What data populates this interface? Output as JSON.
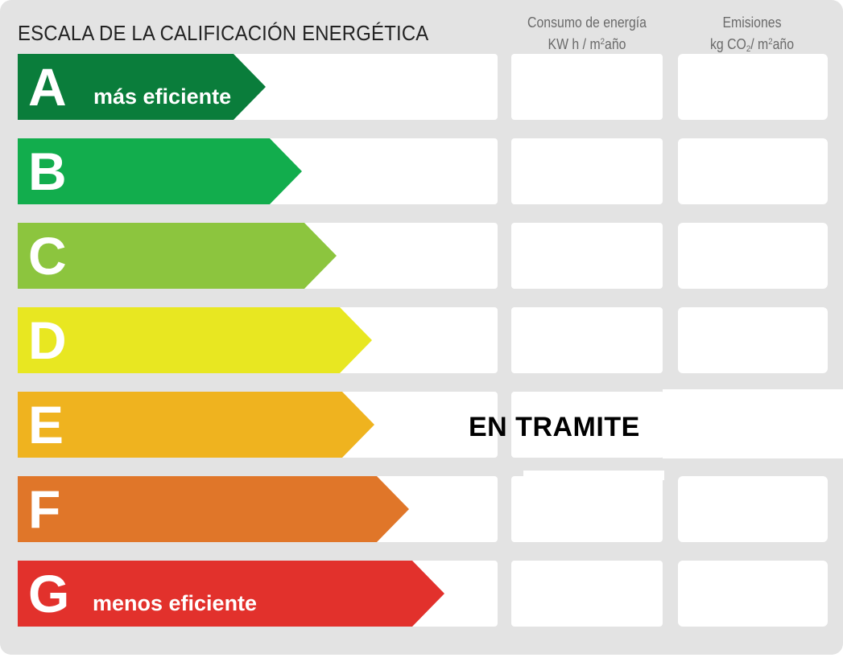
{
  "title": "ESCALA DE LA CALIFICACIÓN ENERGÉTICA",
  "columns": {
    "energy": {
      "line1": "Consumo de energía",
      "line2_pre": "KW h / m",
      "line2_sup": "2",
      "line2_post": "año"
    },
    "emissions": {
      "line1": "Emisiones",
      "line2_pre": "kg CO",
      "line2_sub": "2",
      "line2_mid": "/ m",
      "line2_sup": "2",
      "line2_post": "año"
    }
  },
  "ratings": [
    {
      "letter": "A",
      "label": "más eficiente",
      "color": "#0a7d3b"
    },
    {
      "letter": "B",
      "label": "",
      "color": "#12ad4d"
    },
    {
      "letter": "C",
      "label": "",
      "color": "#8cc53e"
    },
    {
      "letter": "D",
      "label": "",
      "color": "#e8e721"
    },
    {
      "letter": "E",
      "label": "",
      "color": "#efb31f"
    },
    {
      "letter": "F",
      "label": "",
      "color": "#e07629"
    },
    {
      "letter": "G",
      "label": "menos eficiente",
      "color": "#e2312c"
    }
  ],
  "status": "EN TRAMITE"
}
